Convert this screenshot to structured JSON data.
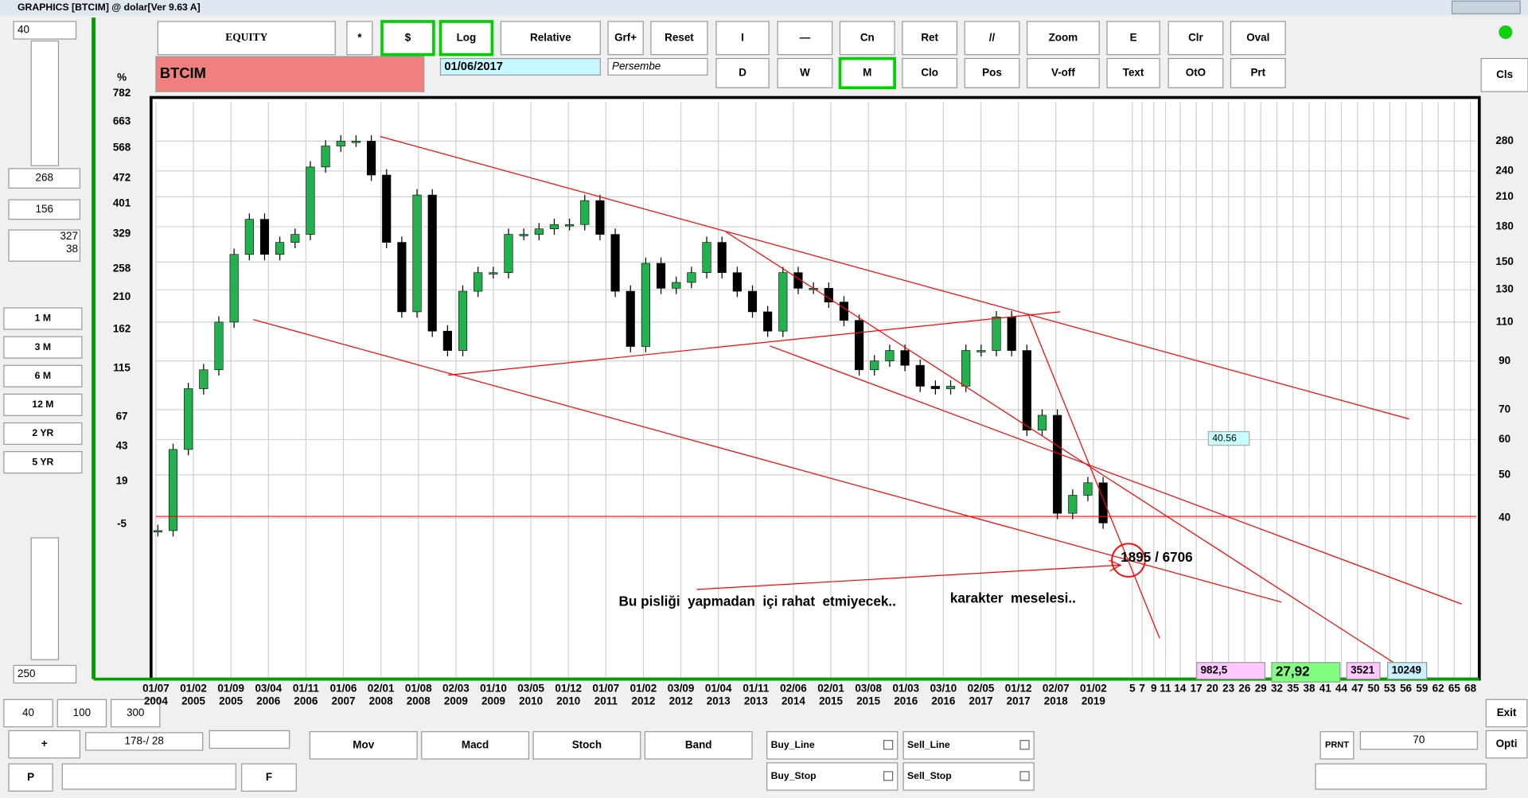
{
  "window_title": "GRAPHICS  [BTCIM] @ dolar[Ver 9.63 A]",
  "left_panel": {
    "period": "40",
    "value_a": "268",
    "value_b": "156",
    "value_c1": "327",
    "value_c2": "38",
    "ranges": [
      "1 M",
      "3 M",
      "6 M",
      "12 M",
      "2 YR",
      "5 YR"
    ],
    "bottom_value": "250",
    "zoom_buttons": [
      "40",
      "100",
      "300"
    ],
    "plus": "+",
    "position": "178-/ 28",
    "p": "P",
    "f": "F"
  },
  "toolbar": {
    "row1": [
      "EQUITY",
      "*",
      "$",
      "Log",
      "Relative",
      "Grf+",
      "Reset",
      "I",
      "—",
      "Cn",
      "Ret",
      "//",
      "Zoom",
      "E",
      "Clr",
      "Oval"
    ],
    "row2": [
      "D",
      "W",
      "M",
      "Clo",
      "Pos",
      "V-off",
      "Text",
      "OtO",
      "Prt"
    ],
    "symbol": "BTCIM",
    "date": "01/06/2017",
    "day": "Persembe",
    "cls": "Cls"
  },
  "chart": {
    "type": "candlestick",
    "log": true,
    "grid": true,
    "percent_label": "%",
    "left_labels": [
      "782",
      "663",
      "568",
      "472",
      "401",
      "329",
      "258",
      "210",
      "162",
      "115",
      "67",
      "43",
      "19",
      "-5"
    ],
    "ylim": [
      17.6,
      342
    ],
    "yticks": [
      280,
      240,
      210,
      180,
      150,
      130,
      110,
      90,
      70,
      60,
      50,
      40
    ],
    "dates": [
      [
        "01/07",
        "2004"
      ],
      [
        "01/02",
        "2005"
      ],
      [
        "01/09",
        "2005"
      ],
      [
        "03/04",
        "2006"
      ],
      [
        "01/11",
        "2006"
      ],
      [
        "01/06",
        "2007"
      ],
      [
        "02/01",
        "2008"
      ],
      [
        "01/08",
        "2008"
      ],
      [
        "02/03",
        "2009"
      ],
      [
        "01/10",
        "2009"
      ],
      [
        "03/05",
        "2010"
      ],
      [
        "01/12",
        "2010"
      ],
      [
        "01/07",
        "2011"
      ],
      [
        "01/02",
        "2012"
      ],
      [
        "03/09",
        "2012"
      ],
      [
        "01/04",
        "2013"
      ],
      [
        "01/11",
        "2013"
      ],
      [
        "02/06",
        "2014"
      ],
      [
        "02/01",
        "2015"
      ],
      [
        "03/08",
        "2015"
      ],
      [
        "01/03",
        "2016"
      ],
      [
        "03/10",
        "2016"
      ],
      [
        "02/05",
        "2017"
      ],
      [
        "01/12",
        "2017"
      ],
      [
        "02/07",
        "2018"
      ],
      [
        "01/02",
        "2019"
      ]
    ],
    "extra_ticks": [
      5,
      7,
      9,
      11,
      14,
      17,
      20,
      23,
      26,
      29,
      32,
      35,
      38,
      41,
      44,
      47,
      50,
      53,
      56,
      59,
      62,
      65,
      68
    ],
    "closes": [
      37.5,
      57,
      78,
      86,
      110,
      156,
      187,
      156,
      166,
      173,
      245,
      273,
      280,
      280,
      235,
      166,
      116,
      212,
      105,
      95,
      129,
      142,
      142,
      173,
      173,
      178,
      182,
      182,
      206,
      173,
      129,
      97,
      149,
      131,
      135,
      142,
      166,
      142,
      129,
      116,
      105,
      142,
      131,
      131,
      122,
      111,
      86,
      90,
      95,
      88,
      79,
      78,
      79,
      95,
      95,
      113,
      95,
      63,
      68,
      41,
      45,
      48,
      39
    ],
    "annotations": {
      "target": "1895 / 6706",
      "comment1": "Bu pisliği  yapmadan  içi rahat  etmiyecek..",
      "comment2": "karakter  meselesi..",
      "marker": "40.56"
    },
    "status": [
      "982,5",
      "27,92",
      "3521",
      "10249"
    ]
  },
  "bottom": {
    "indicators": [
      "Mov",
      "Macd",
      "Stoch",
      "Band"
    ],
    "checks": [
      "Buy_Line",
      "Sell_Line",
      "Buy_Stop",
      "Sell_Stop"
    ],
    "prnt": "PRNT",
    "prnt_value": "70",
    "exit": "Exit",
    "opti": "Opti"
  }
}
